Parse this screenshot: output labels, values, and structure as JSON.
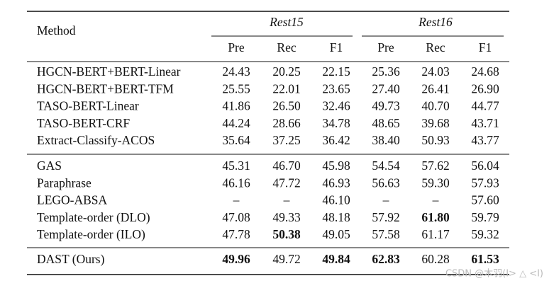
{
  "table": {
    "header": {
      "method": "Method",
      "groups": [
        "Rest15",
        "Rest16"
      ],
      "columns": [
        "Pre",
        "Rec",
        "F1",
        "Pre",
        "Rec",
        "F1"
      ]
    },
    "sections": [
      [
        [
          "HGCN-BERT+BERT-Linear",
          "24.43",
          "20.25",
          "22.15",
          "25.36",
          "24.03",
          "24.68"
        ],
        [
          "HGCN-BERT+BERT-TFM",
          "25.55",
          "22.01",
          "23.65",
          "27.40",
          "26.41",
          "26.90"
        ],
        [
          "TASO-BERT-Linear",
          "41.86",
          "26.50",
          "32.46",
          "49.73",
          "40.70",
          "44.77"
        ],
        [
          "TASO-BERT-CRF",
          "44.24",
          "28.66",
          "34.78",
          "48.65",
          "39.68",
          "43.71"
        ],
        [
          "Extract-Classify-ACOS",
          "35.64",
          "37.25",
          "36.42",
          "38.40",
          "50.93",
          "43.77"
        ]
      ],
      [
        [
          "GAS",
          "45.31",
          "46.70",
          "45.98",
          "54.54",
          "57.62",
          "56.04"
        ],
        [
          "Paraphrase",
          "46.16",
          "47.72",
          "46.93",
          "56.63",
          "59.30",
          "57.93"
        ],
        [
          "LEGO-ABSA",
          "–",
          "–",
          "46.10",
          "–",
          "–",
          "57.60"
        ],
        [
          "Template-order (DLO)",
          "47.08",
          "49.33",
          "48.18",
          "57.92",
          "61.80",
          "59.79"
        ],
        [
          "Template-order (ILO)",
          "47.78",
          "50.38",
          "49.05",
          "57.58",
          "61.17",
          "59.32"
        ]
      ],
      [
        [
          "DAST (Ours)",
          "49.96",
          "49.72",
          "49.84",
          "62.83",
          "60.28",
          "61.53"
        ]
      ]
    ],
    "bold_cells": [
      [
        1,
        3,
        5
      ],
      [
        1,
        4,
        2
      ],
      [
        2,
        0,
        1
      ],
      [
        2,
        0,
        3
      ],
      [
        2,
        0,
        4
      ],
      [
        2,
        0,
        6
      ]
    ]
  },
  "watermark": "CSDN @木羽(I> △ <I)"
}
